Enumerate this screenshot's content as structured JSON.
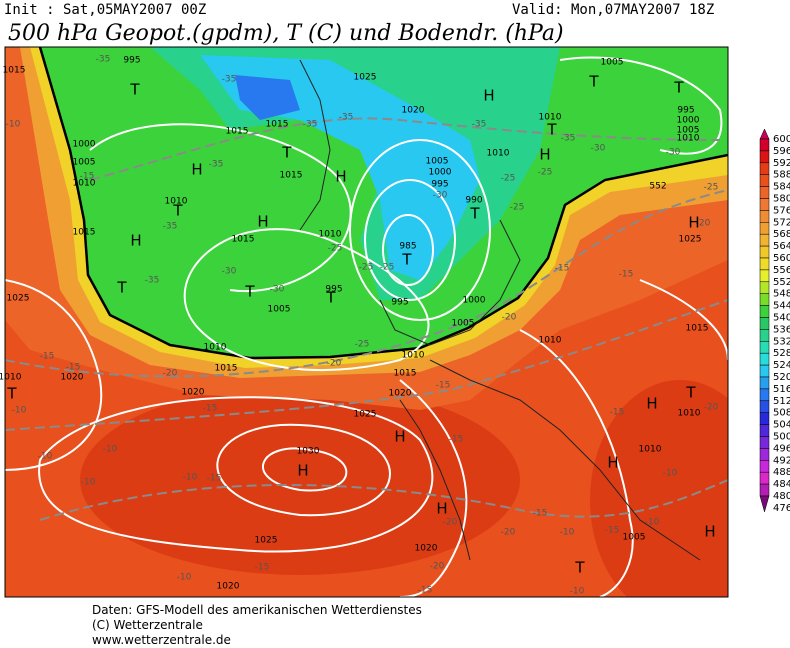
{
  "header": {
    "init": "Init : Sat,05MAY2007 00Z",
    "valid": "Valid: Mon,07MAY2007 18Z",
    "title": "500 hPa Geopot.(gpdm), T (C) und Bodendr. (hPa)"
  },
  "legend": {
    "levels": [
      600,
      596,
      592,
      588,
      584,
      580,
      576,
      572,
      568,
      564,
      560,
      556,
      552,
      548,
      544,
      540,
      536,
      532,
      528,
      524,
      520,
      516,
      512,
      508,
      504,
      500,
      496,
      492,
      488,
      484,
      480,
      476
    ],
    "colors": [
      "#c8005a",
      "#d4002c",
      "#dc1414",
      "#e43c14",
      "#e8501e",
      "#ec6428",
      "#f07832",
      "#f08c32",
      "#f0a032",
      "#f0b432",
      "#f0c828",
      "#f0dc28",
      "#e6f028",
      "#b4e628",
      "#78dc28",
      "#3cd23c",
      "#28c864",
      "#28d28c",
      "#28dcb4",
      "#28dcdc",
      "#28c8f0",
      "#28a0f0",
      "#2878f0",
      "#2850e6",
      "#2828dc",
      "#5028dc",
      "#7828dc",
      "#a028dc",
      "#c828dc",
      "#dc28c8",
      "#b41eb4",
      "#780a78"
    ]
  },
  "map": {
    "pressure_labels": [
      "1015",
      "995",
      "1025",
      "1020",
      "1015",
      "1015",
      "1000",
      "1005",
      "1010",
      "1015",
      "1010",
      "1015",
      "1015",
      "1010",
      "1005",
      "1000",
      "995",
      "990",
      "985",
      "995",
      "995",
      "1005",
      "1000",
      "1005",
      "1010",
      "1015",
      "1010",
      "1015",
      "1020",
      "1020",
      "1025",
      "1030",
      "1025",
      "1020",
      "1020",
      "1025",
      "1020",
      "1010",
      "1010",
      "1015",
      "1010",
      "1010",
      "1005",
      "1010",
      "1005",
      "995",
      "1000",
      "1005",
      "1010",
      "1025",
      "1010"
    ],
    "temperature_labels": [
      "-35",
      "-35",
      "-35",
      "-35",
      "-35",
      "-35",
      "-30",
      "-30",
      "-25",
      "-25",
      "-25",
      "-25",
      "-35",
      "-35",
      "-35",
      "-30",
      "-30",
      "-30",
      "-25",
      "-25",
      "-25",
      "-20",
      "-25",
      "-20",
      "-20",
      "-15",
      "-15",
      "-15",
      "-15",
      "-15",
      "-15",
      "-15",
      "-15",
      "-15",
      "-10",
      "-10",
      "-10",
      "-10",
      "-10",
      "-15",
      "-15",
      "-20",
      "-20",
      "-20",
      "-15",
      "-10",
      "-15",
      "-10",
      "-10",
      "-15",
      "-10",
      "-10",
      "-20",
      "-20",
      "-10"
    ],
    "pressure_centers": [
      "T",
      "T",
      "T",
      "H",
      "T",
      "H",
      "H",
      "T",
      "H",
      "T",
      "T",
      "H",
      "H",
      "T",
      "T",
      "T",
      "T",
      "H",
      "T",
      "H",
      "H",
      "T",
      "H",
      "H",
      "H",
      "T",
      "H"
    ],
    "contour_label": "552"
  },
  "footer": {
    "lines": [
      "Daten: GFS-Modell des amerikanischen Wetterdienstes",
      "(C) Wetterzentrale",
      "www.wetterzentrale.de"
    ]
  }
}
